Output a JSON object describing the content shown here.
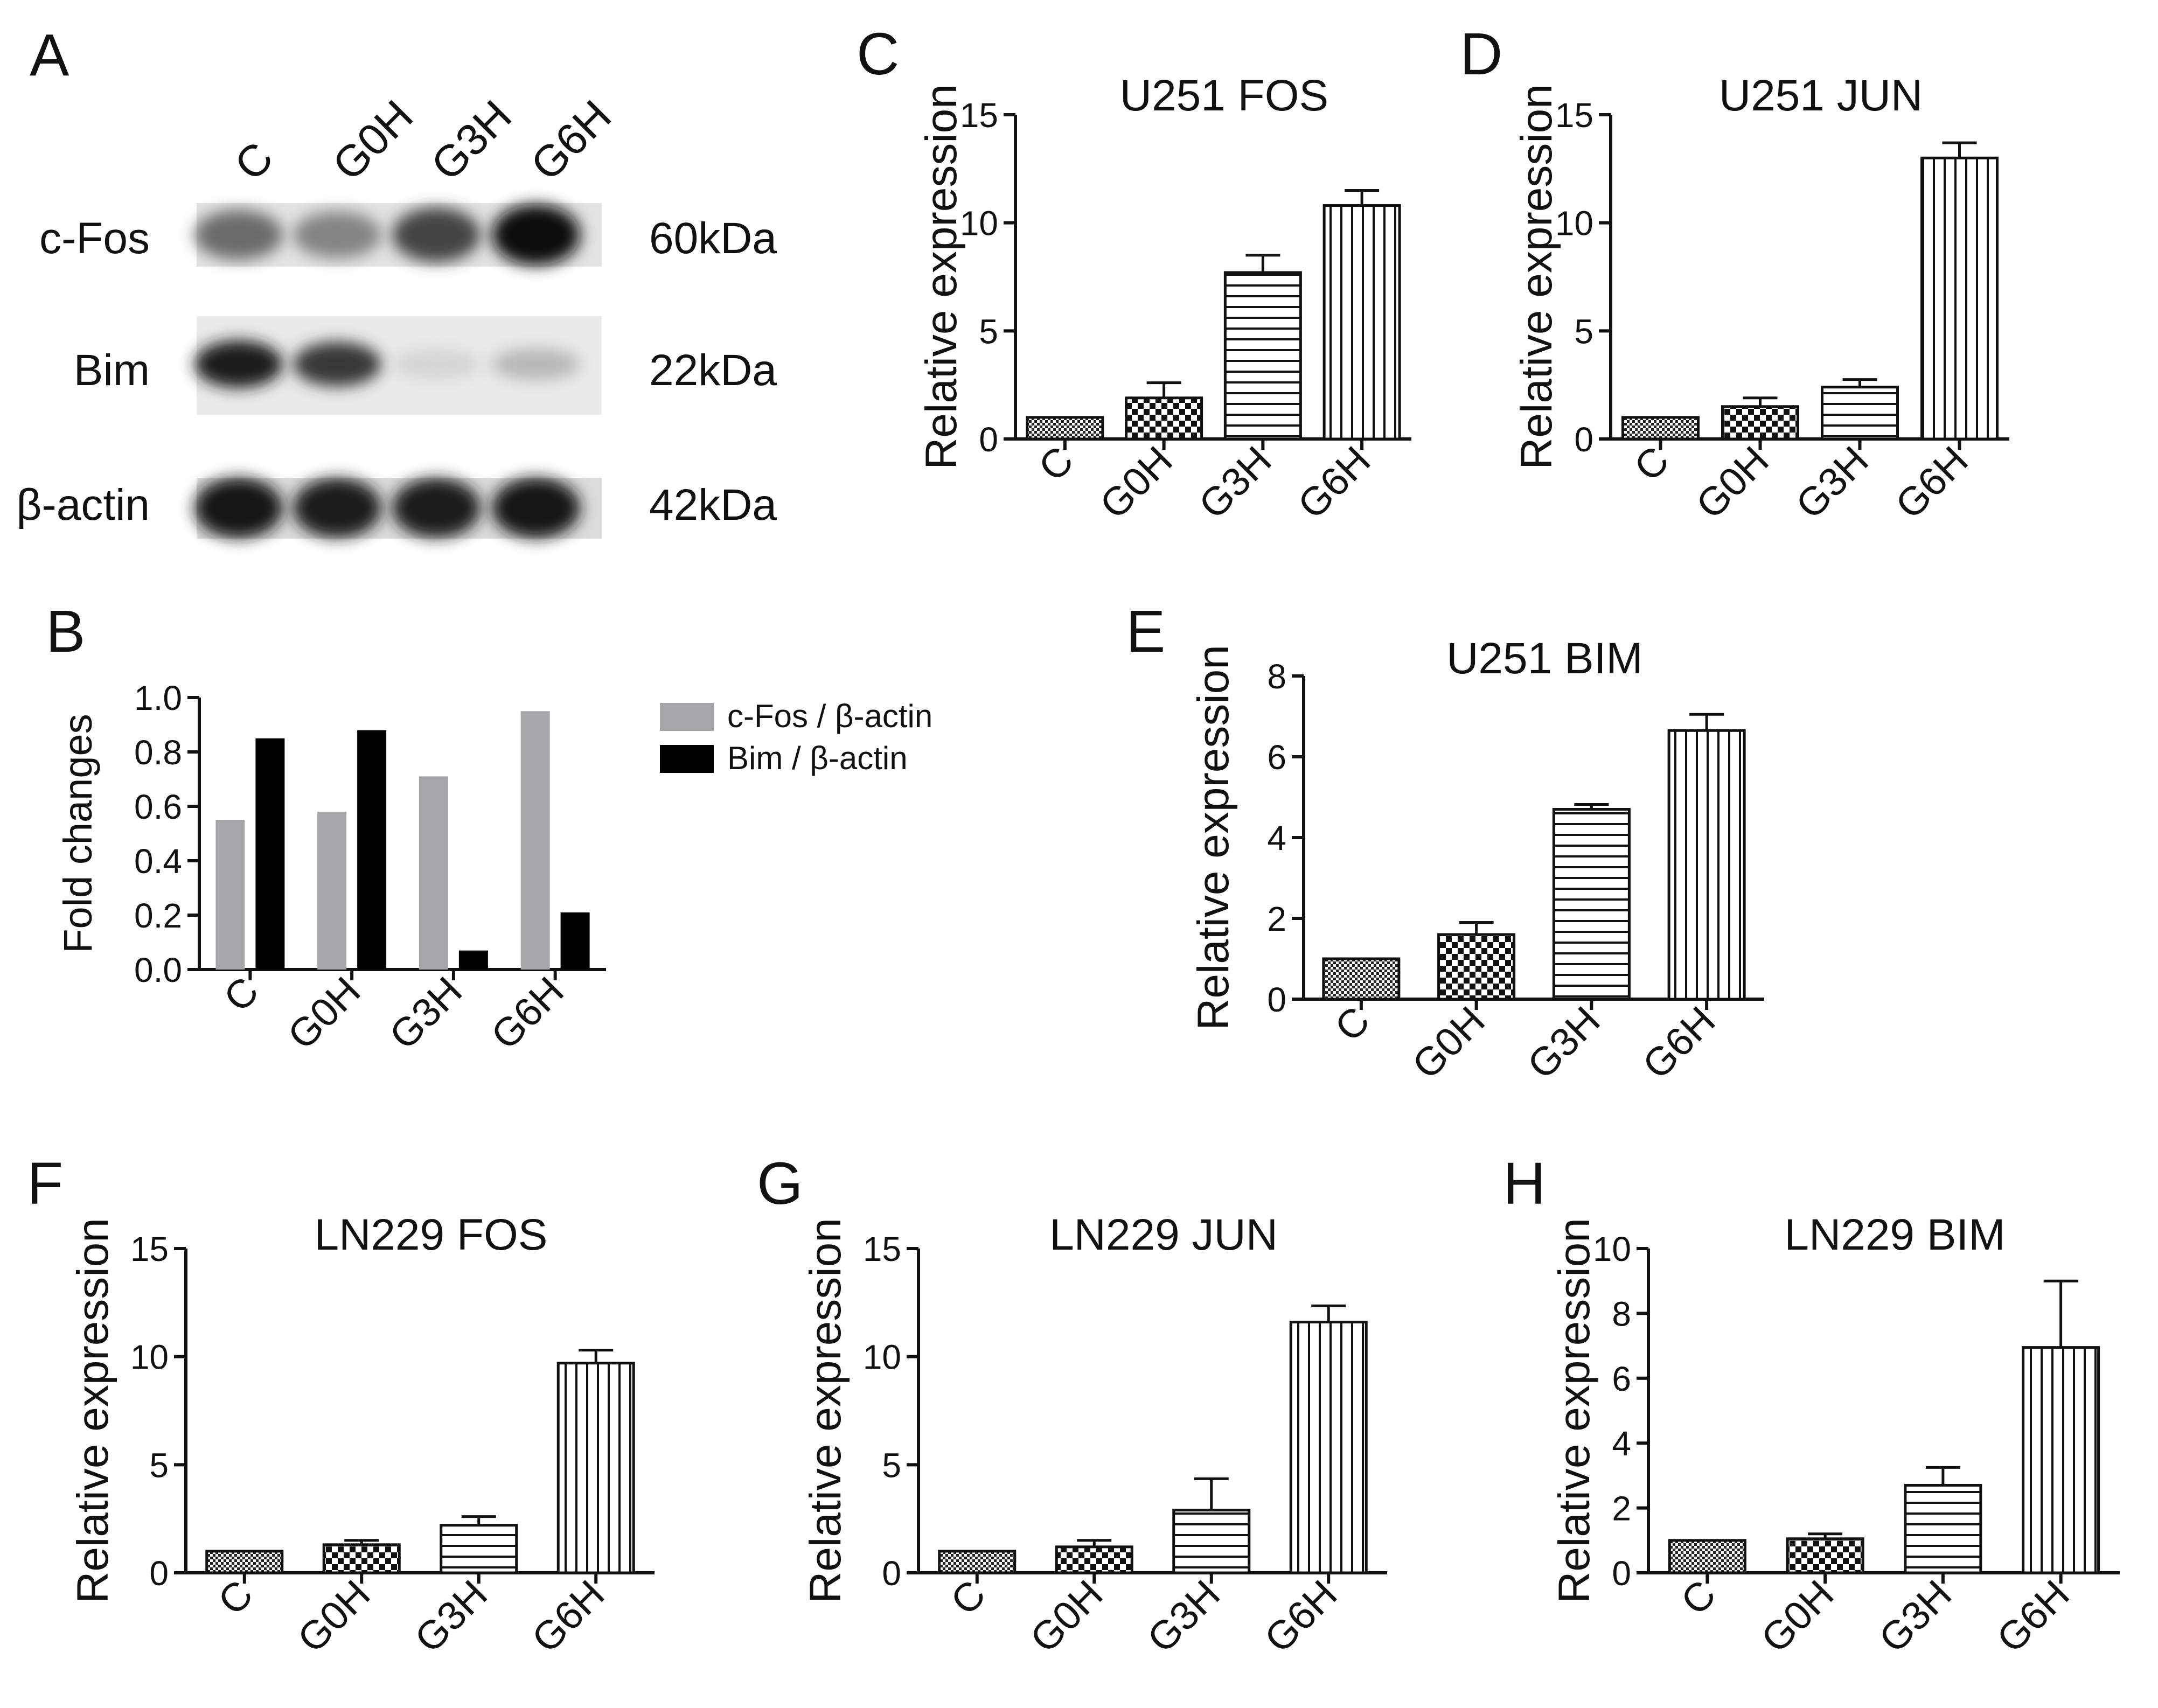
{
  "figure": {
    "categories": [
      "C",
      "G0H",
      "G3H",
      "G6H"
    ],
    "blot": {
      "panel_label": "A",
      "lane_labels": [
        "C",
        "G0H",
        "G3H",
        "G6H"
      ],
      "rows": [
        {
          "protein": "c-Fos",
          "size": "60kDa",
          "intensity": [
            0.55,
            0.45,
            0.72,
            0.95
          ]
        },
        {
          "protein": "Bim",
          "size": "22kDa",
          "intensity": [
            0.9,
            0.78,
            0.1,
            0.22
          ]
        },
        {
          "protein": "β-actin",
          "size": "42kDa",
          "intensity": [
            0.92,
            0.9,
            0.9,
            0.93
          ]
        }
      ]
    }
  },
  "chart_data": [
    {
      "panel": "B",
      "type": "bar",
      "title": "",
      "ylabel": "Fold changes",
      "categories": [
        "C",
        "G0H",
        "G3H",
        "G6H"
      ],
      "ylim": [
        0,
        1.0
      ],
      "yticks": [
        "0.0",
        "0.2",
        "0.4",
        "0.6",
        "0.8",
        "1.0"
      ],
      "legend": "right",
      "series": [
        {
          "name": "c-Fos / β-actin",
          "color": "#a6a6a8",
          "values": [
            0.55,
            0.58,
            0.71,
            0.95
          ]
        },
        {
          "name": "Bim / β-actin",
          "color": "#000000",
          "values": [
            0.85,
            0.88,
            0.07,
            0.21
          ]
        }
      ]
    },
    {
      "panel": "C",
      "type": "bar",
      "title": "U251 FOS",
      "ylabel": "Relative expression",
      "categories": [
        "C",
        "G0H",
        "G3H",
        "G6H"
      ],
      "ylim": [
        0,
        15
      ],
      "yticks": [
        "0",
        "5",
        "10",
        "15"
      ],
      "values": [
        1.0,
        1.9,
        7.7,
        10.8
      ],
      "errors": [
        0.0,
        0.7,
        0.8,
        0.7
      ],
      "patterns": [
        "fine-check",
        "check",
        "horizontal",
        "vertical"
      ]
    },
    {
      "panel": "D",
      "type": "bar",
      "title": "U251 JUN",
      "ylabel": "Relative expression",
      "categories": [
        "C",
        "G0H",
        "G3H",
        "G6H"
      ],
      "ylim": [
        0,
        15
      ],
      "yticks": [
        "0",
        "5",
        "10",
        "15"
      ],
      "values": [
        1.0,
        1.5,
        2.4,
        13.0
      ],
      "errors": [
        0.0,
        0.4,
        0.35,
        0.7
      ],
      "patterns": [
        "fine-check",
        "check",
        "horizontal",
        "vertical"
      ]
    },
    {
      "panel": "E",
      "type": "bar",
      "title": "U251 BIM",
      "ylabel": "Relative expression",
      "categories": [
        "C",
        "G0H",
        "G3H",
        "G6H"
      ],
      "ylim": [
        0,
        8
      ],
      "yticks": [
        "0",
        "2",
        "4",
        "6",
        "8"
      ],
      "values": [
        1.0,
        1.6,
        4.7,
        6.65
      ],
      "errors": [
        0.0,
        0.3,
        0.12,
        0.4
      ],
      "patterns": [
        "fine-check",
        "check",
        "horizontal",
        "vertical"
      ]
    },
    {
      "panel": "F",
      "type": "bar",
      "title": "LN229 FOS",
      "ylabel": "Relative expression",
      "categories": [
        "C",
        "G0H",
        "G3H",
        "G6H"
      ],
      "ylim": [
        0,
        15
      ],
      "yticks": [
        "0",
        "5",
        "10",
        "15"
      ],
      "values": [
        1.0,
        1.3,
        2.2,
        9.7
      ],
      "errors": [
        0.0,
        0.2,
        0.4,
        0.6
      ],
      "patterns": [
        "fine-check",
        "check",
        "horizontal",
        "vertical"
      ]
    },
    {
      "panel": "G",
      "type": "bar",
      "title": "LN229 JUN",
      "ylabel": "Relative expression",
      "categories": [
        "C",
        "G0H",
        "G3H",
        "G6H"
      ],
      "ylim": [
        0,
        15
      ],
      "yticks": [
        "0",
        "5",
        "10",
        "15"
      ],
      "values": [
        1.0,
        1.2,
        2.9,
        11.6
      ],
      "errors": [
        0.0,
        0.3,
        1.45,
        0.75
      ],
      "patterns": [
        "fine-check",
        "check",
        "horizontal",
        "vertical"
      ]
    },
    {
      "panel": "H",
      "type": "bar",
      "title": "LN229 BIM",
      "ylabel": "Relative expression",
      "categories": [
        "C",
        "G0H",
        "G3H",
        "G6H"
      ],
      "ylim": [
        0,
        10
      ],
      "yticks": [
        "0",
        "2",
        "4",
        "6",
        "8",
        "10"
      ],
      "values": [
        1.0,
        1.05,
        2.7,
        6.95
      ],
      "errors": [
        0.0,
        0.15,
        0.55,
        2.05
      ],
      "patterns": [
        "fine-check",
        "check",
        "horizontal",
        "vertical"
      ]
    }
  ]
}
